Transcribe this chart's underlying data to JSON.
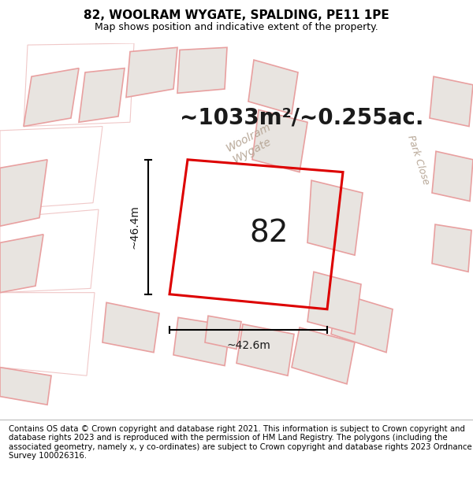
{
  "title": "82, WOOLRAM WYGATE, SPALDING, PE11 1PE",
  "subtitle": "Map shows position and indicative extent of the property.",
  "area_text": "~1033m²/~0.255ac.",
  "label_82": "82",
  "dim_width": "~42.6m",
  "dim_height": "~46.4m",
  "footer": "Contains OS data © Crown copyright and database right 2021. This information is subject to Crown copyright and database rights 2023 and is reproduced with the permission of HM Land Registry. The polygons (including the associated geometry, namely x, y co-ordinates) are subject to Crown copyright and database rights 2023 Ordnance Survey 100026316.",
  "bg_color": "#f5f3f0",
  "road_color": "#ffffff",
  "plot_edge_color": "#dd0000",
  "bld_fill": "#e8e4e0",
  "bld_edge_pink": "#e8a0a0",
  "bld_edge_lt": "#f0c8c8",
  "road_label_color": "#b8a898",
  "title_color": "#000000",
  "footer_color": "#000000",
  "title_fontsize": 11,
  "subtitle_fontsize": 9,
  "area_fontsize": 20,
  "dim_fontsize": 10,
  "label_fontsize": 28
}
